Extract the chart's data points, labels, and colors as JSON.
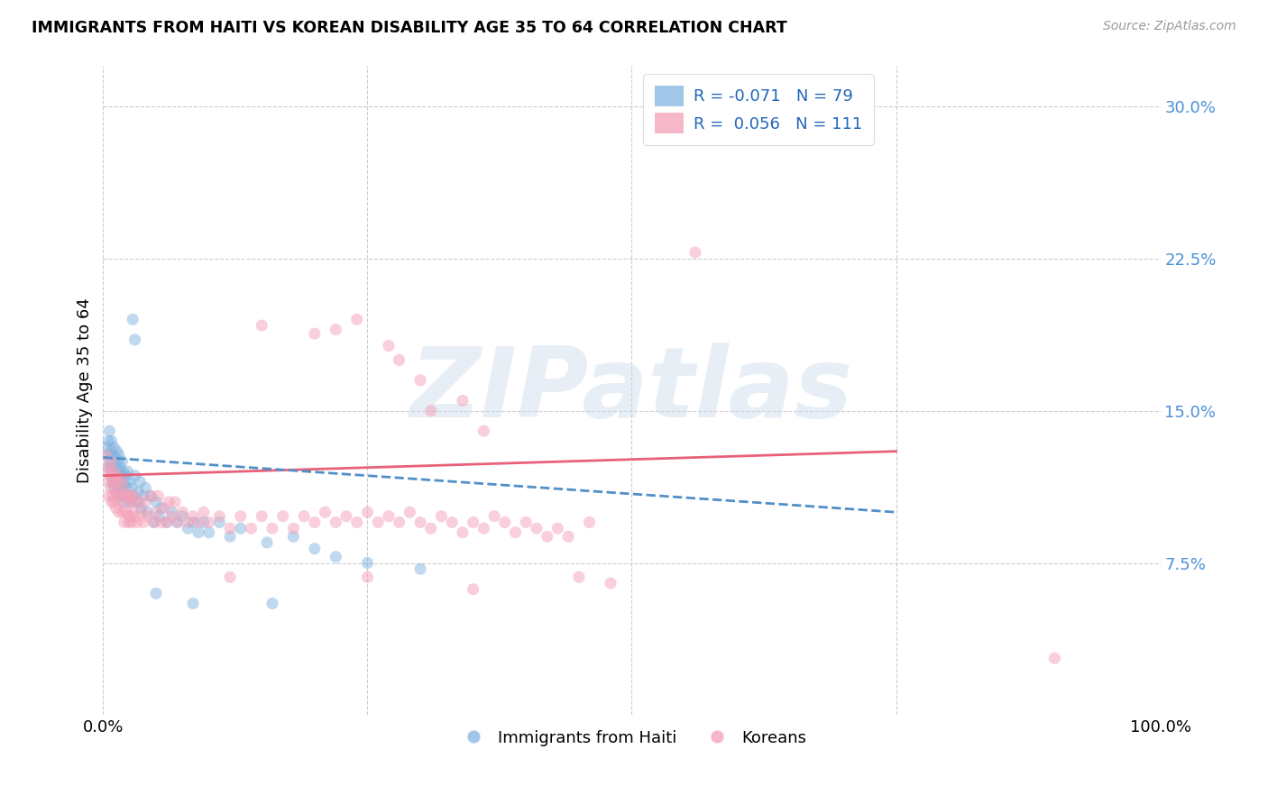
{
  "title": "IMMIGRANTS FROM HAITI VS KOREAN DISABILITY AGE 35 TO 64 CORRELATION CHART",
  "source": "Source: ZipAtlas.com",
  "ylabel": "Disability Age 35 to 64",
  "watermark": "ZIPatlas",
  "legend_blue_r": "-0.071",
  "legend_blue_n": "79",
  "legend_pink_r": "0.056",
  "legend_pink_n": "111",
  "legend_blue_label": "Immigrants from Haiti",
  "legend_pink_label": "Koreans",
  "xlim": [
    0,
    1.0
  ],
  "ylim": [
    0,
    0.32
  ],
  "xticks": [
    0.0,
    0.25,
    0.5,
    0.75,
    1.0
  ],
  "xticklabels": [
    "0.0%",
    "",
    "",
    "",
    "100.0%"
  ],
  "yticks": [
    0.075,
    0.15,
    0.225,
    0.3
  ],
  "yticklabels": [
    "7.5%",
    "15.0%",
    "22.5%",
    "30.0%"
  ],
  "grid_color": "#c8c8c8",
  "blue_color": "#82b4e0",
  "pink_color": "#f4a0b8",
  "blue_scatter": [
    [
      0.003,
      0.132
    ],
    [
      0.004,
      0.128
    ],
    [
      0.005,
      0.135
    ],
    [
      0.005,
      0.122
    ],
    [
      0.006,
      0.14
    ],
    [
      0.006,
      0.125
    ],
    [
      0.007,
      0.13
    ],
    [
      0.007,
      0.118
    ],
    [
      0.008,
      0.135
    ],
    [
      0.008,
      0.122
    ],
    [
      0.009,
      0.128
    ],
    [
      0.009,
      0.115
    ],
    [
      0.01,
      0.132
    ],
    [
      0.01,
      0.12
    ],
    [
      0.01,
      0.112
    ],
    [
      0.011,
      0.127
    ],
    [
      0.011,
      0.118
    ],
    [
      0.012,
      0.122
    ],
    [
      0.012,
      0.114
    ],
    [
      0.013,
      0.13
    ],
    [
      0.013,
      0.118
    ],
    [
      0.014,
      0.125
    ],
    [
      0.014,
      0.112
    ],
    [
      0.015,
      0.128
    ],
    [
      0.015,
      0.12
    ],
    [
      0.015,
      0.108
    ],
    [
      0.016,
      0.122
    ],
    [
      0.016,
      0.115
    ],
    [
      0.017,
      0.118
    ],
    [
      0.017,
      0.11
    ],
    [
      0.018,
      0.125
    ],
    [
      0.018,
      0.112
    ],
    [
      0.019,
      0.12
    ],
    [
      0.019,
      0.108
    ],
    [
      0.02,
      0.115
    ],
    [
      0.02,
      0.105
    ],
    [
      0.021,
      0.118
    ],
    [
      0.022,
      0.112
    ],
    [
      0.023,
      0.12
    ],
    [
      0.024,
      0.108
    ],
    [
      0.025,
      0.115
    ],
    [
      0.026,
      0.105
    ],
    [
      0.027,
      0.112
    ],
    [
      0.028,
      0.108
    ],
    [
      0.03,
      0.118
    ],
    [
      0.032,
      0.105
    ],
    [
      0.033,
      0.11
    ],
    [
      0.035,
      0.115
    ],
    [
      0.036,
      0.102
    ],
    [
      0.038,
      0.108
    ],
    [
      0.04,
      0.112
    ],
    [
      0.042,
      0.1
    ],
    [
      0.045,
      0.108
    ],
    [
      0.048,
      0.095
    ],
    [
      0.05,
      0.105
    ],
    [
      0.053,
      0.098
    ],
    [
      0.055,
      0.102
    ],
    [
      0.06,
      0.095
    ],
    [
      0.065,
      0.1
    ],
    [
      0.07,
      0.095
    ],
    [
      0.075,
      0.098
    ],
    [
      0.08,
      0.092
    ],
    [
      0.085,
      0.095
    ],
    [
      0.09,
      0.09
    ],
    [
      0.095,
      0.095
    ],
    [
      0.1,
      0.09
    ],
    [
      0.11,
      0.095
    ],
    [
      0.12,
      0.088
    ],
    [
      0.13,
      0.092
    ],
    [
      0.028,
      0.195
    ],
    [
      0.03,
      0.185
    ],
    [
      0.05,
      0.06
    ],
    [
      0.085,
      0.055
    ],
    [
      0.16,
      0.055
    ],
    [
      0.155,
      0.085
    ],
    [
      0.18,
      0.088
    ],
    [
      0.2,
      0.082
    ],
    [
      0.22,
      0.078
    ],
    [
      0.25,
      0.075
    ],
    [
      0.3,
      0.072
    ]
  ],
  "pink_scatter": [
    [
      0.003,
      0.128
    ],
    [
      0.004,
      0.12
    ],
    [
      0.005,
      0.115
    ],
    [
      0.005,
      0.108
    ],
    [
      0.006,
      0.122
    ],
    [
      0.007,
      0.112
    ],
    [
      0.007,
      0.125
    ],
    [
      0.008,
      0.118
    ],
    [
      0.008,
      0.105
    ],
    [
      0.009,
      0.115
    ],
    [
      0.009,
      0.108
    ],
    [
      0.01,
      0.12
    ],
    [
      0.01,
      0.105
    ],
    [
      0.011,
      0.115
    ],
    [
      0.012,
      0.11
    ],
    [
      0.012,
      0.102
    ],
    [
      0.013,
      0.118
    ],
    [
      0.014,
      0.108
    ],
    [
      0.015,
      0.115
    ],
    [
      0.015,
      0.1
    ],
    [
      0.016,
      0.11
    ],
    [
      0.017,
      0.105
    ],
    [
      0.018,
      0.115
    ],
    [
      0.019,
      0.1
    ],
    [
      0.02,
      0.108
    ],
    [
      0.02,
      0.095
    ],
    [
      0.021,
      0.11
    ],
    [
      0.022,
      0.1
    ],
    [
      0.023,
      0.108
    ],
    [
      0.024,
      0.095
    ],
    [
      0.025,
      0.105
    ],
    [
      0.025,
      0.098
    ],
    [
      0.026,
      0.108
    ],
    [
      0.027,
      0.095
    ],
    [
      0.028,
      0.105
    ],
    [
      0.028,
      0.1
    ],
    [
      0.03,
      0.098
    ],
    [
      0.03,
      0.108
    ],
    [
      0.032,
      0.095
    ],
    [
      0.034,
      0.105
    ],
    [
      0.036,
      0.1
    ],
    [
      0.038,
      0.095
    ],
    [
      0.04,
      0.105
    ],
    [
      0.042,
      0.098
    ],
    [
      0.045,
      0.108
    ],
    [
      0.048,
      0.095
    ],
    [
      0.05,
      0.1
    ],
    [
      0.052,
      0.108
    ],
    [
      0.055,
      0.095
    ],
    [
      0.058,
      0.102
    ],
    [
      0.06,
      0.095
    ],
    [
      0.062,
      0.105
    ],
    [
      0.065,
      0.098
    ],
    [
      0.068,
      0.105
    ],
    [
      0.07,
      0.095
    ],
    [
      0.075,
      0.1
    ],
    [
      0.08,
      0.095
    ],
    [
      0.085,
      0.098
    ],
    [
      0.09,
      0.095
    ],
    [
      0.095,
      0.1
    ],
    [
      0.1,
      0.095
    ],
    [
      0.11,
      0.098
    ],
    [
      0.12,
      0.092
    ],
    [
      0.13,
      0.098
    ],
    [
      0.14,
      0.092
    ],
    [
      0.15,
      0.098
    ],
    [
      0.16,
      0.092
    ],
    [
      0.17,
      0.098
    ],
    [
      0.18,
      0.092
    ],
    [
      0.19,
      0.098
    ],
    [
      0.2,
      0.095
    ],
    [
      0.21,
      0.1
    ],
    [
      0.22,
      0.095
    ],
    [
      0.23,
      0.098
    ],
    [
      0.24,
      0.095
    ],
    [
      0.25,
      0.1
    ],
    [
      0.26,
      0.095
    ],
    [
      0.27,
      0.098
    ],
    [
      0.28,
      0.095
    ],
    [
      0.29,
      0.1
    ],
    [
      0.3,
      0.095
    ],
    [
      0.31,
      0.092
    ],
    [
      0.32,
      0.098
    ],
    [
      0.33,
      0.095
    ],
    [
      0.34,
      0.09
    ],
    [
      0.35,
      0.095
    ],
    [
      0.36,
      0.092
    ],
    [
      0.37,
      0.098
    ],
    [
      0.38,
      0.095
    ],
    [
      0.39,
      0.09
    ],
    [
      0.4,
      0.095
    ],
    [
      0.41,
      0.092
    ],
    [
      0.42,
      0.088
    ],
    [
      0.43,
      0.092
    ],
    [
      0.44,
      0.088
    ],
    [
      0.46,
      0.095
    ],
    [
      0.22,
      0.19
    ],
    [
      0.28,
      0.175
    ],
    [
      0.3,
      0.165
    ],
    [
      0.34,
      0.155
    ],
    [
      0.31,
      0.15
    ],
    [
      0.36,
      0.14
    ],
    [
      0.27,
      0.182
    ],
    [
      0.24,
      0.195
    ],
    [
      0.2,
      0.188
    ],
    [
      0.15,
      0.192
    ],
    [
      0.12,
      0.068
    ],
    [
      0.25,
      0.068
    ],
    [
      0.35,
      0.062
    ],
    [
      0.45,
      0.068
    ],
    [
      0.48,
      0.065
    ],
    [
      0.56,
      0.228
    ],
    [
      0.9,
      0.028
    ]
  ],
  "blue_line_x": [
    0.0,
    0.75
  ],
  "blue_line_y": [
    0.127,
    0.1
  ],
  "pink_line_x": [
    0.0,
    0.75
  ],
  "pink_line_y": [
    0.118,
    0.13
  ],
  "marker_size": 90,
  "tick_color": "#4a90d9"
}
